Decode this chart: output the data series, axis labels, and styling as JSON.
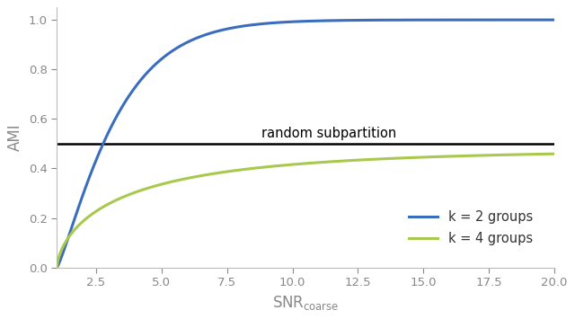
{
  "title": "",
  "xlabel_text": "SNR",
  "xlabel_sub": "coarse",
  "ylabel": "AMI",
  "xlim": [
    1.0,
    20.0
  ],
  "ylim": [
    0.0,
    1.05
  ],
  "xticks": [
    2.5,
    5.0,
    7.5,
    10.0,
    12.5,
    15.0,
    17.5,
    20.0
  ],
  "yticks": [
    0.0,
    0.2,
    0.4,
    0.6,
    0.8,
    1.0
  ],
  "hline_y": 0.5,
  "hline_label": "random subpartition",
  "hline_color": "#000000",
  "line_k2_color": "#3a6dbd",
  "line_k4_color": "#a8c84e",
  "legend_k2": "k = 2 groups",
  "legend_k4": "k = 4 groups",
  "background_color": "#ffffff",
  "spine_color": "#bbbbbb",
  "tick_color": "#888888",
  "label_color": "#888888",
  "k2_a": 0.45,
  "k2_p": 1.35,
  "k4_max": 0.475,
  "k4_a": 0.22,
  "k4_p": 1.1
}
